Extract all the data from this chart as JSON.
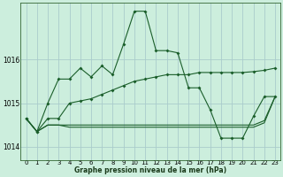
{
  "title": "Graphe pression niveau de la mer (hPa)",
  "background_color": "#cceedd",
  "grid_color": "#aacccc",
  "line_color": "#1a5e2a",
  "xlim": [
    -0.5,
    23.5
  ],
  "ylim": [
    1013.7,
    1017.3
  ],
  "yticks": [
    1014,
    1015,
    1016
  ],
  "xticks": [
    0,
    1,
    2,
    3,
    4,
    5,
    6,
    7,
    8,
    9,
    10,
    11,
    12,
    13,
    14,
    15,
    16,
    17,
    18,
    19,
    20,
    21,
    22,
    23
  ],
  "line_zigzag": [
    1014.65,
    1014.35,
    1015.0,
    1015.55,
    1015.55,
    1015.8,
    1015.6,
    1015.85,
    1015.65,
    1016.35,
    1017.1,
    1017.1,
    1016.2,
    1016.2,
    1016.15,
    1015.35,
    1015.35,
    1014.85,
    1014.2,
    1014.2,
    1014.2,
    1014.7,
    1015.15,
    1015.15
  ],
  "line_smooth": [
    1014.65,
    1014.35,
    1014.65,
    1014.65,
    1015.0,
    1015.05,
    1015.1,
    1015.2,
    1015.3,
    1015.4,
    1015.5,
    1015.55,
    1015.6,
    1015.65,
    1015.65,
    1015.65,
    1015.7,
    1015.7,
    1015.7,
    1015.7,
    1015.7,
    1015.72,
    1015.75,
    1015.8
  ],
  "line_flat1": [
    1014.65,
    1014.35,
    1014.5,
    1014.5,
    1014.5,
    1014.5,
    1014.5,
    1014.5,
    1014.5,
    1014.5,
    1014.5,
    1014.5,
    1014.5,
    1014.5,
    1014.5,
    1014.5,
    1014.5,
    1014.5,
    1014.5,
    1014.5,
    1014.5,
    1014.5,
    1014.6,
    1015.15
  ],
  "line_flat2": [
    1014.65,
    1014.35,
    1014.5,
    1014.5,
    1014.45,
    1014.45,
    1014.45,
    1014.45,
    1014.45,
    1014.45,
    1014.45,
    1014.45,
    1014.45,
    1014.45,
    1014.45,
    1014.45,
    1014.45,
    1014.45,
    1014.45,
    1014.45,
    1014.45,
    1014.45,
    1014.55,
    1015.15
  ]
}
